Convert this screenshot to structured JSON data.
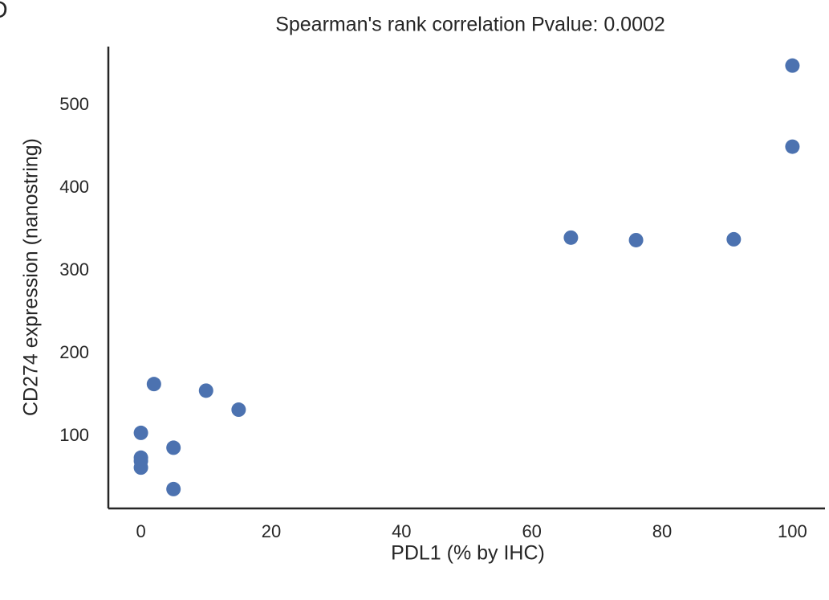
{
  "panel_label": "D",
  "chart_data": {
    "type": "scatter",
    "title": "Spearman's rank correlation Pvalue: 0.0002",
    "xlabel": "PDL1 (% by IHC)",
    "ylabel": "CD274 expression (nanostring)",
    "x": [
      0,
      0,
      0,
      0,
      2,
      5,
      5,
      10,
      15,
      66,
      76,
      91,
      100,
      100
    ],
    "values": [
      104,
      74,
      70,
      62,
      163,
      86,
      36,
      155,
      132,
      340,
      337,
      338,
      548,
      450
    ],
    "color": "#4c72b0",
    "xlim": [
      -5,
      105
    ],
    "xticks": [
      0,
      20,
      40,
      60,
      80,
      100
    ],
    "ylim": [
      12.6,
      571
    ],
    "yticks": [
      100,
      200,
      300,
      400,
      500
    ],
    "grid": false
  }
}
